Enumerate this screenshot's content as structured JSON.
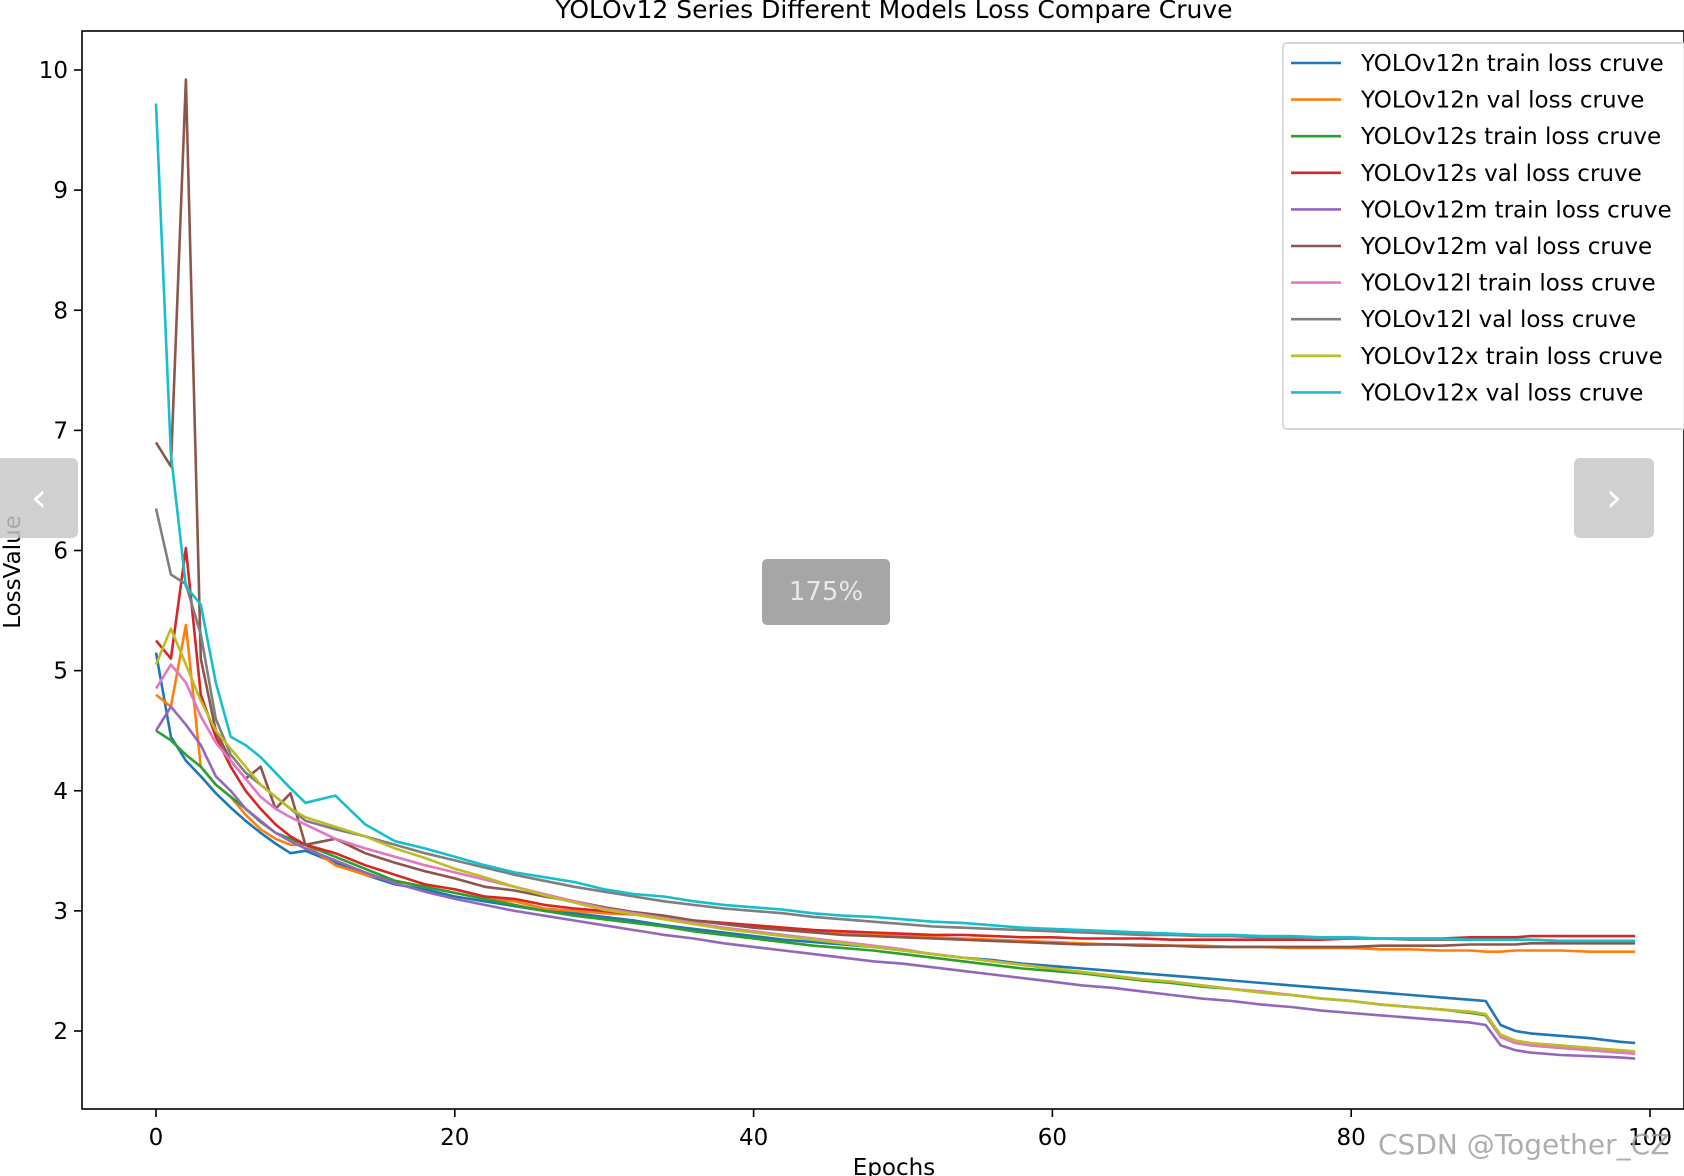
{
  "viewer": {
    "zoom_label": "175%",
    "prev_icon": "‹",
    "next_icon": "›",
    "watermark": "CSDN @Together_CZ"
  },
  "chart_data": {
    "type": "line",
    "title": "YOLOv12 Series Different Models Loss Compare Cruve",
    "xlabel": "Epochs",
    "ylabel": "LossValue",
    "xlim": [
      -5,
      100
    ],
    "ylim": [
      1.4,
      10.3
    ],
    "x_ticks": [
      0,
      20,
      40,
      60,
      80,
      100
    ],
    "y_ticks": [
      2,
      3,
      4,
      5,
      6,
      7,
      8,
      9,
      10
    ],
    "grid": false,
    "legend_position": "top-right",
    "x": [
      0,
      1,
      2,
      3,
      4,
      5,
      6,
      7,
      8,
      9,
      10,
      12,
      14,
      16,
      18,
      20,
      22,
      24,
      26,
      28,
      30,
      32,
      34,
      36,
      38,
      40,
      42,
      44,
      46,
      48,
      50,
      52,
      54,
      56,
      58,
      60,
      62,
      64,
      66,
      68,
      70,
      72,
      74,
      76,
      78,
      80,
      82,
      84,
      86,
      88,
      89,
      90,
      91,
      92,
      94,
      96,
      98,
      99
    ],
    "series": [
      {
        "name": "YOLOv12n train loss cruve",
        "color": "#1f77b4",
        "values": [
          5.15,
          4.45,
          4.25,
          4.12,
          3.98,
          3.86,
          3.75,
          3.65,
          3.56,
          3.48,
          3.5,
          3.4,
          3.3,
          3.22,
          3.18,
          3.12,
          3.08,
          3.04,
          3.0,
          2.98,
          2.95,
          2.92,
          2.88,
          2.85,
          2.82,
          2.79,
          2.76,
          2.74,
          2.72,
          2.7,
          2.67,
          2.64,
          2.61,
          2.59,
          2.56,
          2.54,
          2.52,
          2.5,
          2.48,
          2.46,
          2.44,
          2.42,
          2.4,
          2.38,
          2.36,
          2.34,
          2.32,
          2.3,
          2.28,
          2.26,
          2.25,
          2.05,
          2.0,
          1.98,
          1.96,
          1.94,
          1.91,
          1.9
        ]
      },
      {
        "name": "YOLOv12n val loss cruve",
        "color": "#ff7f0e",
        "values": [
          4.8,
          4.7,
          5.38,
          4.2,
          4.05,
          3.95,
          3.8,
          3.68,
          3.6,
          3.55,
          3.55,
          3.38,
          3.3,
          3.25,
          3.2,
          3.15,
          3.1,
          3.08,
          3.02,
          3.0,
          2.98,
          2.97,
          2.95,
          2.92,
          2.9,
          2.88,
          2.86,
          2.84,
          2.82,
          2.8,
          2.8,
          2.78,
          2.77,
          2.76,
          2.75,
          2.74,
          2.73,
          2.72,
          2.72,
          2.71,
          2.71,
          2.7,
          2.7,
          2.69,
          2.69,
          2.69,
          2.68,
          2.68,
          2.67,
          2.67,
          2.66,
          2.66,
          2.67,
          2.67,
          2.67,
          2.66,
          2.66,
          2.66
        ]
      },
      {
        "name": "YOLOv12s train loss cruve",
        "color": "#2ca02c",
        "values": [
          4.5,
          4.42,
          4.3,
          4.2,
          4.05,
          3.95,
          3.85,
          3.74,
          3.65,
          3.6,
          3.55,
          3.45,
          3.35,
          3.25,
          3.2,
          3.15,
          3.1,
          3.05,
          3.0,
          2.96,
          2.93,
          2.9,
          2.87,
          2.83,
          2.8,
          2.77,
          2.74,
          2.71,
          2.69,
          2.67,
          2.64,
          2.61,
          2.58,
          2.55,
          2.52,
          2.5,
          2.48,
          2.45,
          2.42,
          2.4,
          2.37,
          2.35,
          2.32,
          2.3,
          2.27,
          2.25,
          2.22,
          2.2,
          2.18,
          2.15,
          2.13,
          1.95,
          1.9,
          1.88,
          1.86,
          1.84,
          1.82,
          1.82
        ]
      },
      {
        "name": "YOLOv12s val loss cruve",
        "color": "#d62728",
        "values": [
          5.25,
          5.1,
          6.02,
          4.8,
          4.45,
          4.2,
          4.0,
          3.85,
          3.72,
          3.62,
          3.55,
          3.48,
          3.38,
          3.3,
          3.22,
          3.18,
          3.12,
          3.1,
          3.05,
          3.02,
          3.0,
          2.97,
          2.95,
          2.92,
          2.9,
          2.88,
          2.86,
          2.84,
          2.83,
          2.82,
          2.81,
          2.8,
          2.8,
          2.79,
          2.78,
          2.78,
          2.77,
          2.77,
          2.77,
          2.76,
          2.76,
          2.76,
          2.76,
          2.76,
          2.76,
          2.77,
          2.77,
          2.77,
          2.77,
          2.78,
          2.78,
          2.78,
          2.78,
          2.79,
          2.79,
          2.79,
          2.79,
          2.79
        ]
      },
      {
        "name": "YOLOv12m train loss cruve",
        "color": "#9467bd",
        "values": [
          4.5,
          4.7,
          4.55,
          4.38,
          4.12,
          4.0,
          3.85,
          3.75,
          3.65,
          3.58,
          3.52,
          3.42,
          3.32,
          3.23,
          3.16,
          3.1,
          3.05,
          3.0,
          2.96,
          2.92,
          2.88,
          2.84,
          2.8,
          2.77,
          2.73,
          2.7,
          2.67,
          2.64,
          2.61,
          2.58,
          2.56,
          2.53,
          2.5,
          2.47,
          2.44,
          2.41,
          2.38,
          2.36,
          2.33,
          2.3,
          2.27,
          2.25,
          2.22,
          2.2,
          2.17,
          2.15,
          2.13,
          2.11,
          2.09,
          2.07,
          2.05,
          1.88,
          1.84,
          1.82,
          1.8,
          1.79,
          1.78,
          1.77
        ]
      },
      {
        "name": "YOLOv12m val loss cruve",
        "color": "#8c564b",
        "values": [
          6.9,
          6.7,
          9.92,
          5.1,
          4.5,
          4.25,
          4.1,
          4.2,
          3.85,
          3.98,
          3.55,
          3.6,
          3.48,
          3.4,
          3.33,
          3.27,
          3.2,
          3.17,
          3.12,
          3.08,
          3.03,
          2.99,
          2.96,
          2.92,
          2.89,
          2.86,
          2.84,
          2.82,
          2.8,
          2.79,
          2.78,
          2.77,
          2.76,
          2.75,
          2.74,
          2.73,
          2.72,
          2.72,
          2.71,
          2.71,
          2.7,
          2.7,
          2.7,
          2.7,
          2.7,
          2.7,
          2.71,
          2.71,
          2.71,
          2.72,
          2.72,
          2.72,
          2.72,
          2.73,
          2.73,
          2.73,
          2.73,
          2.73
        ]
      },
      {
        "name": "YOLOv12l train loss cruve",
        "color": "#e377c2",
        "values": [
          4.85,
          5.05,
          4.9,
          4.62,
          4.4,
          4.25,
          4.1,
          3.95,
          3.85,
          3.78,
          3.72,
          3.6,
          3.52,
          3.45,
          3.38,
          3.32,
          3.26,
          3.2,
          3.14,
          3.08,
          3.02,
          2.98,
          2.94,
          2.9,
          2.86,
          2.83,
          2.8,
          2.77,
          2.74,
          2.71,
          2.68,
          2.64,
          2.61,
          2.58,
          2.55,
          2.52,
          2.49,
          2.46,
          2.43,
          2.41,
          2.38,
          2.35,
          2.33,
          2.3,
          2.27,
          2.25,
          2.22,
          2.2,
          2.18,
          2.16,
          2.14,
          1.95,
          1.9,
          1.88,
          1.86,
          1.84,
          1.82,
          1.81
        ]
      },
      {
        "name": "YOLOv12l val loss cruve",
        "color": "#7f7f7f",
        "values": [
          6.35,
          5.8,
          5.72,
          5.3,
          4.6,
          4.3,
          4.15,
          4.05,
          3.95,
          3.85,
          3.75,
          3.68,
          3.62,
          3.55,
          3.48,
          3.42,
          3.36,
          3.3,
          3.25,
          3.2,
          3.16,
          3.12,
          3.08,
          3.05,
          3.02,
          3.0,
          2.98,
          2.95,
          2.93,
          2.91,
          2.89,
          2.87,
          2.86,
          2.85,
          2.84,
          2.83,
          2.82,
          2.81,
          2.8,
          2.8,
          2.79,
          2.79,
          2.78,
          2.78,
          2.77,
          2.77,
          2.77,
          2.76,
          2.76,
          2.76,
          2.76,
          2.76,
          2.76,
          2.76,
          2.75,
          2.75,
          2.75,
          2.75
        ]
      },
      {
        "name": "YOLOv12x train loss cruve",
        "color": "#bcbd22",
        "values": [
          5.05,
          5.35,
          5.05,
          4.75,
          4.5,
          4.35,
          4.2,
          4.05,
          3.95,
          3.85,
          3.78,
          3.7,
          3.62,
          3.52,
          3.44,
          3.35,
          3.28,
          3.2,
          3.13,
          3.07,
          3.01,
          2.97,
          2.93,
          2.89,
          2.85,
          2.82,
          2.79,
          2.76,
          2.73,
          2.7,
          2.67,
          2.64,
          2.61,
          2.58,
          2.55,
          2.52,
          2.49,
          2.46,
          2.43,
          2.41,
          2.38,
          2.35,
          2.32,
          2.3,
          2.27,
          2.25,
          2.22,
          2.2,
          2.18,
          2.16,
          2.14,
          1.97,
          1.92,
          1.9,
          1.88,
          1.86,
          1.84,
          1.83
        ]
      },
      {
        "name": "YOLOv12x val loss cruve",
        "color": "#17becf",
        "values": [
          9.72,
          6.8,
          5.7,
          5.55,
          4.9,
          4.45,
          4.38,
          4.28,
          4.15,
          4.02,
          3.9,
          3.96,
          3.72,
          3.58,
          3.52,
          3.45,
          3.38,
          3.32,
          3.28,
          3.24,
          3.18,
          3.14,
          3.12,
          3.08,
          3.05,
          3.03,
          3.01,
          2.98,
          2.96,
          2.95,
          2.93,
          2.91,
          2.9,
          2.88,
          2.86,
          2.85,
          2.84,
          2.83,
          2.82,
          2.81,
          2.8,
          2.8,
          2.79,
          2.79,
          2.78,
          2.78,
          2.77,
          2.77,
          2.77,
          2.76,
          2.76,
          2.76,
          2.76,
          2.76,
          2.75,
          2.75,
          2.75,
          2.75
        ]
      }
    ]
  }
}
